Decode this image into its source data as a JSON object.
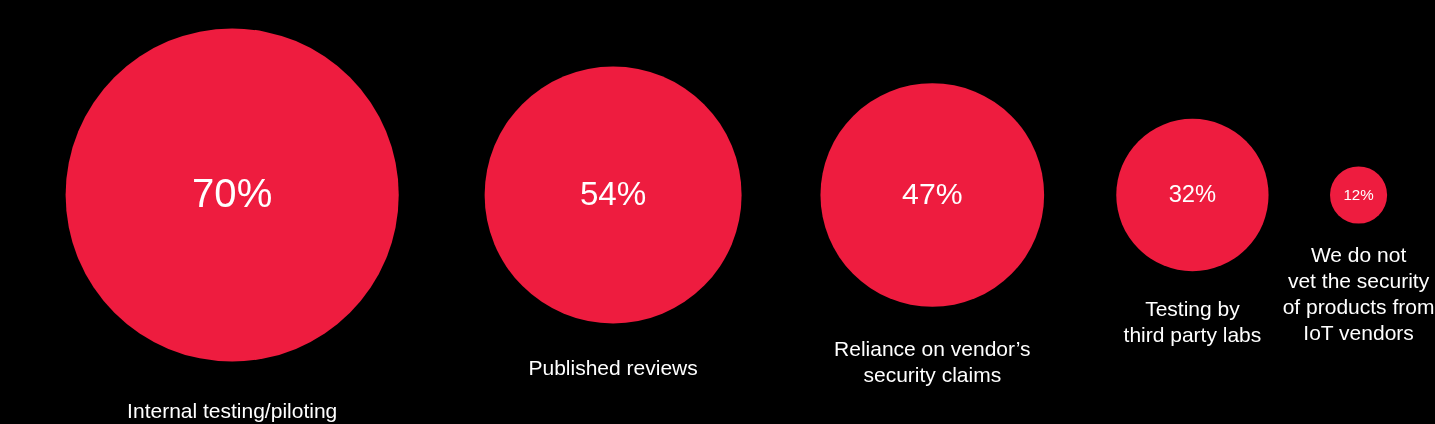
{
  "chart_data": {
    "type": "other",
    "categories": [
      "Internal testing/piloting",
      "Published reviews",
      "Reliance on vendor’s\nsecurity claims",
      "Testing by\nthird party labs",
      "We do not\nvet the security\nof products from\nIoT vendors"
    ],
    "values": [
      70,
      54,
      47,
      32,
      12
    ],
    "value_labels": [
      "70%",
      "54%",
      "47%",
      "32%",
      "12%"
    ],
    "colors": [
      "#ee1c3f",
      "#ee1c3f",
      "#ee1c3f",
      "#ee1c3f",
      "#ee1c3f"
    ]
  }
}
